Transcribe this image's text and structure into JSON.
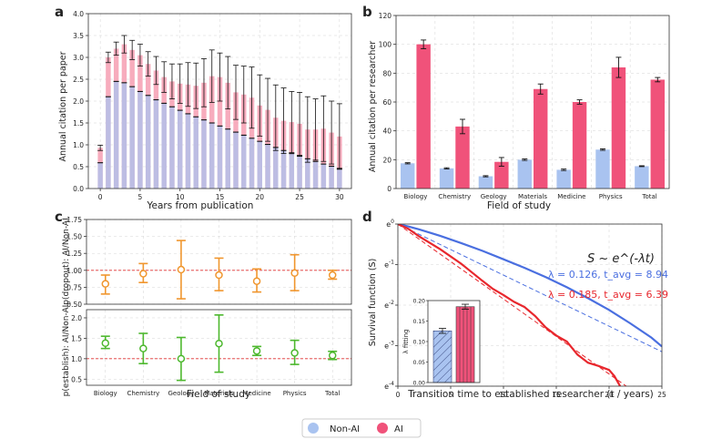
{
  "colors": {
    "nonai": "#a9c3f0",
    "ai": "#f0527a",
    "ai_light": "#f6a3b6",
    "orange": "#f0962e",
    "green": "#4db82e",
    "ref": "#e03030",
    "blue_line": "#4a6fe0",
    "red_line": "#e8272d"
  },
  "legend": {
    "nonai": "Non-AI",
    "ai": "AI"
  },
  "panel_labels": {
    "a": "a",
    "b": "b",
    "c": "c",
    "d": "d"
  },
  "chart_data": [
    {
      "panel": "a",
      "type": "bar",
      "xlabel": "Years from publication",
      "ylabel": "Annual citation per paper",
      "xlim": [
        -1.5,
        31.5
      ],
      "ylim": [
        0,
        4.0
      ],
      "xticks": [
        0,
        5,
        10,
        15,
        20,
        25,
        30
      ],
      "yticks": [
        0.0,
        0.5,
        1.0,
        1.5,
        2.0,
        2.5,
        3.0,
        3.5,
        4.0
      ],
      "ytick_labels": [
        "0.0",
        "0.5",
        "1.0",
        "1.5",
        "2.0",
        "2.5",
        "3.0",
        "3.5",
        "4.0"
      ],
      "x": [
        0,
        1,
        2,
        3,
        4,
        5,
        6,
        7,
        8,
        9,
        10,
        11,
        12,
        13,
        14,
        15,
        16,
        17,
        18,
        19,
        20,
        21,
        22,
        23,
        24,
        25,
        26,
        27,
        28,
        29,
        30
      ],
      "series": [
        {
          "name": "Non-AI",
          "values": [
            0.59,
            2.1,
            2.45,
            2.42,
            2.33,
            2.22,
            2.13,
            2.03,
            1.95,
            1.87,
            1.79,
            1.71,
            1.64,
            1.57,
            1.5,
            1.43,
            1.36,
            1.29,
            1.22,
            1.15,
            1.08,
            1.01,
            0.94,
            0.87,
            0.8,
            0.74,
            0.68,
            0.62,
            0.56,
            0.51,
            0.46
          ],
          "err": [
            0.02,
            0.02,
            0.02,
            0.02,
            0.02,
            0.02,
            0.02,
            0.02,
            0.02,
            0.02,
            0.02,
            0.02,
            0.02,
            0.02,
            0.02,
            0.02,
            0.02,
            0.02,
            0.02,
            0.02,
            0.02,
            0.02,
            0.02,
            0.02,
            0.02,
            0.02,
            0.02,
            0.02,
            0.02,
            0.02,
            0.02
          ]
        },
        {
          "name": "AI",
          "values": [
            0.93,
            3.0,
            3.2,
            3.3,
            3.17,
            3.05,
            2.85,
            2.7,
            2.55,
            2.45,
            2.4,
            2.38,
            2.35,
            2.42,
            2.57,
            2.55,
            2.42,
            2.2,
            2.15,
            2.08,
            1.9,
            1.8,
            1.62,
            1.55,
            1.52,
            1.48,
            1.35,
            1.35,
            1.37,
            1.28,
            1.19
          ],
          "err": [
            0.06,
            0.12,
            0.15,
            0.2,
            0.22,
            0.25,
            0.28,
            0.32,
            0.35,
            0.4,
            0.45,
            0.5,
            0.52,
            0.55,
            0.6,
            0.55,
            0.6,
            0.62,
            0.65,
            0.7,
            0.7,
            0.72,
            0.75,
            0.75,
            0.7,
            0.72,
            0.75,
            0.7,
            0.75,
            0.72,
            0.75
          ]
        }
      ]
    },
    {
      "panel": "b",
      "type": "bar",
      "xlabel": "Field of study",
      "ylabel": "Annual citation per researcher",
      "ylim": [
        0,
        120
      ],
      "yticks": [
        0,
        20,
        40,
        60,
        80,
        100,
        120
      ],
      "categories": [
        "Biology",
        "Chemistry",
        "Geology",
        "Materials",
        "Medicine",
        "Physics",
        "Total"
      ],
      "series": [
        {
          "name": "Non-AI",
          "values": [
            17.5,
            14.0,
            8.5,
            20.0,
            13.0,
            27.0,
            15.5
          ],
          "err": [
            0.4,
            0.4,
            0.4,
            0.5,
            0.5,
            0.5,
            0.3
          ]
        },
        {
          "name": "AI",
          "values": [
            100,
            43,
            18.5,
            69,
            60,
            84,
            75.5
          ],
          "err": [
            3.0,
            5.0,
            3.0,
            3.5,
            1.5,
            7.0,
            1.5
          ]
        }
      ]
    },
    {
      "panel": "c-top",
      "type": "scatter",
      "ylabel": "p(dropout): AI/Non-AI",
      "ylim": [
        0.5,
        1.75
      ],
      "yticks": [
        0.5,
        0.75,
        1.0,
        1.25,
        1.5,
        1.75
      ],
      "ytick_labels": [
        "0.50",
        "0.75",
        "1.00",
        "1.25",
        "1.50",
        "1.75"
      ],
      "reference_line": 1.0,
      "categories": [
        "Biology",
        "Chemistry",
        "Geology",
        "Materials",
        "Medicine",
        "Physics",
        "Total"
      ],
      "values": [
        0.8,
        0.95,
        1.01,
        0.93,
        0.84,
        0.96,
        0.93
      ],
      "err_low": [
        0.65,
        0.82,
        0.58,
        0.7,
        0.68,
        0.7,
        0.87
      ],
      "err_high": [
        0.93,
        1.1,
        1.44,
        1.18,
        1.02,
        1.23,
        1.0
      ]
    },
    {
      "panel": "c-bottom",
      "type": "scatter",
      "xlabel": "Field of study",
      "ylabel": "p(establish): AI/Non-AI",
      "ylim": [
        0.35,
        2.2
      ],
      "yticks": [
        0.5,
        1.0,
        1.5,
        2.0
      ],
      "ytick_labels": [
        "0.5",
        "1.0",
        "1.5",
        "2.0"
      ],
      "reference_line": 1.0,
      "categories": [
        "Biology",
        "Chemistry",
        "Geology",
        "Materials",
        "Medicine",
        "Physics",
        "Total"
      ],
      "values": [
        1.38,
        1.25,
        1.0,
        1.37,
        1.19,
        1.14,
        1.08
      ],
      "err_low": [
        1.25,
        0.88,
        0.47,
        0.67,
        1.08,
        0.86,
        0.98
      ],
      "err_high": [
        1.55,
        1.62,
        1.52,
        2.07,
        1.3,
        1.45,
        1.18
      ]
    },
    {
      "panel": "d",
      "type": "line",
      "xlabel": "Transition time to established researcher (t / years)",
      "ylabel": "Survival function (S)",
      "xlim": [
        0,
        25
      ],
      "xticks": [
        0,
        5,
        10,
        15,
        20,
        25
      ],
      "ylim_log": [
        -4,
        0
      ],
      "ytick_labels": [
        "e^0",
        "e^-1",
        "e^-2",
        "e^-3",
        "e^-4"
      ],
      "formula": "S ~ e^(-λt)",
      "annotations": [
        "λ = 0.126, t_avg = 8.94",
        "λ = 0.185, t_avg = 6.39"
      ],
      "series": [
        {
          "name": "Non-AI",
          "x": [
            0,
            1,
            2,
            4,
            6,
            8,
            10,
            12,
            14,
            16,
            18,
            20,
            22,
            24,
            25
          ],
          "y": [
            0,
            -0.06,
            -0.13,
            -0.29,
            -0.47,
            -0.66,
            -0.87,
            -1.08,
            -1.31,
            -1.56,
            -1.83,
            -2.12,
            -2.45,
            -2.8,
            -3.02
          ]
        },
        {
          "name": "AI",
          "x": [
            0,
            1,
            2,
            4,
            6,
            8,
            9,
            10,
            11,
            12,
            13,
            14,
            15,
            16,
            17,
            18,
            19,
            20,
            20.5,
            21,
            21.4
          ],
          "y": [
            0,
            -0.12,
            -0.3,
            -0.62,
            -0.98,
            -1.4,
            -1.6,
            -1.75,
            -1.92,
            -2.05,
            -2.27,
            -2.55,
            -2.75,
            -2.9,
            -3.22,
            -3.42,
            -3.5,
            -3.6,
            -3.75,
            -3.98,
            -4.2
          ]
        },
        {
          "name": "Non-AI fit",
          "lambda": 0.126
        },
        {
          "name": "AI fit",
          "lambda": 0.185
        }
      ],
      "inset": {
        "ylabel": "λ fitting",
        "yticks": [
          0.0,
          0.05,
          0.1,
          0.15,
          0.2
        ],
        "ytick_labels": [
          "0.00",
          "0.05",
          "0.10",
          "0.15",
          "0.20"
        ],
        "ylim": [
          0,
          0.2
        ],
        "values": [
          0.126,
          0.185
        ],
        "err": [
          0.006,
          0.006
        ]
      }
    }
  ]
}
